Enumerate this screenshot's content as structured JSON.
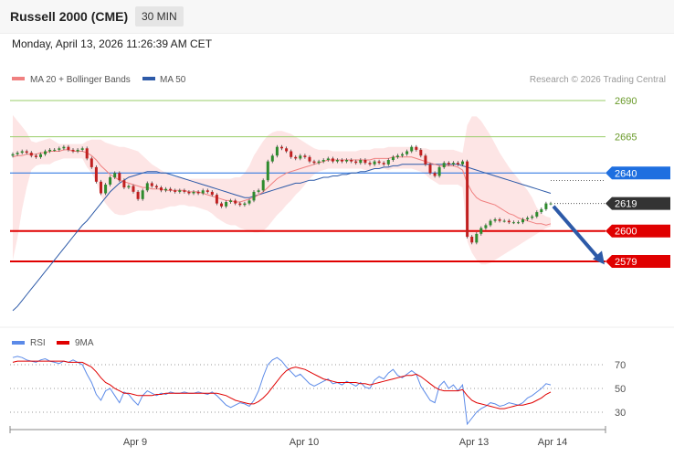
{
  "header": {
    "title": "Russell 2000 (CME)",
    "timeframe": "30 MIN"
  },
  "datetime": "Monday, April 13, 2026 11:26:39 AM CET",
  "colors": {
    "ma20": "#f08080",
    "ma50": "#2d5aa8",
    "band": "#fde0e0",
    "rsi": "#5b8ae8",
    "rsi_ma": "#e00000",
    "up": "#2e8b2e",
    "down": "#c02020",
    "resistance_green": "#9acd6a",
    "pivot_blue": "#1e6fe0",
    "support_red": "#e00000",
    "last": "#333333"
  },
  "chart_data": [
    {
      "type": "candlestick",
      "legend": [
        {
          "name": "MA 20 + Bollinger Bands",
          "color": "#f08080"
        },
        {
          "name": "MA 50",
          "color": "#2d5aa8"
        }
      ],
      "watermark": "Research © 2026 Trading Central",
      "ylim": [
        2520,
        2700
      ],
      "levels": [
        {
          "value": 2690,
          "label": "2690",
          "style": "resistance-green"
        },
        {
          "value": 2665,
          "label": "2665",
          "style": "resistance-green"
        },
        {
          "value": 2640,
          "label": "2640",
          "style": "pivot-blue"
        },
        {
          "value": 2619,
          "label": "2619",
          "style": "last-price"
        },
        {
          "value": 2600,
          "label": "2600",
          "style": "support-red"
        },
        {
          "value": 2579,
          "label": "2579",
          "style": "support-red"
        }
      ],
      "x_ticks": [
        "Apr 9",
        "Apr 10",
        "Apr 13",
        "Apr 14"
      ],
      "close": [
        2653,
        2654,
        2655,
        2654,
        2652,
        2651,
        2653,
        2655,
        2656,
        2656,
        2657,
        2658,
        2656,
        2655,
        2656,
        2657,
        2650,
        2644,
        2634,
        2626,
        2632,
        2637,
        2640,
        2635,
        2630,
        2631,
        2627,
        2622,
        2628,
        2633,
        2631,
        2630,
        2628,
        2629,
        2628,
        2627,
        2628,
        2627,
        2626,
        2627,
        2626,
        2628,
        2627,
        2625,
        2619,
        2617,
        2620,
        2621,
        2619,
        2618,
        2619,
        2621,
        2627,
        2628,
        2635,
        2648,
        2652,
        2658,
        2657,
        2655,
        2651,
        2650,
        2652,
        2651,
        2648,
        2647,
        2648,
        2649,
        2650,
        2648,
        2649,
        2648,
        2649,
        2648,
        2647,
        2649,
        2647,
        2646,
        2648,
        2647,
        2646,
        2649,
        2651,
        2652,
        2653,
        2655,
        2658,
        2656,
        2652,
        2646,
        2640,
        2638,
        2644,
        2647,
        2646,
        2647,
        2646,
        2648,
        2596,
        2592,
        2598,
        2602,
        2604,
        2607,
        2608,
        2607,
        2607,
        2606,
        2606,
        2606,
        2608,
        2609,
        2610,
        2613,
        2615,
        2619,
        2619
      ],
      "ma20": [
        2651,
        2652,
        2652,
        2653,
        2653,
        2653,
        2654,
        2654,
        2655,
        2655,
        2655,
        2656,
        2656,
        2655,
        2655,
        2655,
        2654,
        2652,
        2649,
        2645,
        2642,
        2639,
        2637,
        2635,
        2634,
        2633,
        2632,
        2631,
        2630,
        2630,
        2629,
        2629,
        2629,
        2628,
        2628,
        2628,
        2628,
        2628,
        2627,
        2627,
        2627,
        2626,
        2625,
        2624,
        2623,
        2622,
        2621,
        2621,
        2620,
        2620,
        2621,
        2622,
        2623,
        2625,
        2627,
        2630,
        2633,
        2636,
        2638,
        2640,
        2641,
        2642,
        2643,
        2644,
        2645,
        2646,
        2647,
        2648,
        2649,
        2649,
        2649,
        2649,
        2649,
        2649,
        2649,
        2649,
        2649,
        2649,
        2650,
        2650,
        2650,
        2650,
        2651,
        2651,
        2651,
        2651,
        2651,
        2650,
        2649,
        2648,
        2647,
        2646,
        2645,
        2645,
        2645,
        2645,
        2644,
        2642,
        2633,
        2627,
        2623,
        2621,
        2620,
        2619,
        2618,
        2616,
        2614,
        2612,
        2611,
        2609,
        2608,
        2607,
        2606,
        2605,
        2605,
        2604,
        2605
      ],
      "bb_upper": [
        2680,
        2676,
        2672,
        2668,
        2662,
        2661,
        2662,
        2663,
        2664,
        2662,
        2660,
        2660,
        2660,
        2660,
        2660,
        2660,
        2662,
        2663,
        2663,
        2663,
        2661,
        2660,
        2659,
        2658,
        2658,
        2657,
        2656,
        2655,
        2652,
        2649,
        2646,
        2644,
        2642,
        2640,
        2638,
        2637,
        2637,
        2636,
        2636,
        2636,
        2636,
        2636,
        2636,
        2636,
        2636,
        2636,
        2636,
        2636,
        2637,
        2637,
        2640,
        2645,
        2652,
        2657,
        2662,
        2666,
        2668,
        2669,
        2669,
        2668,
        2667,
        2665,
        2663,
        2661,
        2659,
        2657,
        2656,
        2656,
        2656,
        2655,
        2655,
        2655,
        2655,
        2655,
        2655,
        2656,
        2656,
        2656,
        2657,
        2657,
        2657,
        2658,
        2658,
        2658,
        2658,
        2658,
        2658,
        2658,
        2657,
        2657,
        2656,
        2656,
        2656,
        2656,
        2656,
        2656,
        2655,
        2654,
        2673,
        2679,
        2679,
        2676,
        2671,
        2666,
        2660,
        2654,
        2649,
        2644,
        2640,
        2636,
        2632,
        2628,
        2623,
        2616,
        2612,
        2610,
        2609
      ],
      "bb_lower": [
        2580,
        2595,
        2615,
        2630,
        2642,
        2645,
        2646,
        2646,
        2646,
        2648,
        2649,
        2650,
        2650,
        2650,
        2650,
        2650,
        2644,
        2640,
        2634,
        2624,
        2619,
        2615,
        2612,
        2611,
        2611,
        2612,
        2613,
        2614,
        2614,
        2614,
        2614,
        2615,
        2615,
        2616,
        2617,
        2617,
        2618,
        2618,
        2617,
        2617,
        2616,
        2615,
        2614,
        2612,
        2609,
        2607,
        2605,
        2604,
        2604,
        2602,
        2601,
        2600,
        2599,
        2599,
        2600,
        2603,
        2607,
        2611,
        2614,
        2618,
        2621,
        2625,
        2628,
        2632,
        2636,
        2639,
        2641,
        2642,
        2643,
        2643,
        2643,
        2643,
        2643,
        2643,
        2643,
        2643,
        2642,
        2642,
        2643,
        2643,
        2643,
        2642,
        2643,
        2643,
        2643,
        2643,
        2643,
        2642,
        2641,
        2639,
        2636,
        2634,
        2632,
        2632,
        2632,
        2632,
        2632,
        2630,
        2593,
        2585,
        2580,
        2577,
        2577,
        2578,
        2580,
        2582,
        2584,
        2586,
        2588,
        2590,
        2592,
        2594,
        2596,
        2598,
        2600,
        2602,
        2603
      ],
      "ma50": [
        2545,
        2548,
        2552,
        2556,
        2560,
        2564,
        2568,
        2572,
        2576,
        2580,
        2584,
        2588,
        2592,
        2596,
        2600,
        2604,
        2607,
        2611,
        2615,
        2619,
        2623,
        2627,
        2630,
        2633,
        2635,
        2637,
        2638,
        2639,
        2640,
        2641,
        2641,
        2641,
        2640,
        2640,
        2639,
        2638,
        2637,
        2636,
        2635,
        2634,
        2633,
        2632,
        2631,
        2630,
        2629,
        2628,
        2627,
        2626,
        2625,
        2624,
        2623,
        2623,
        2624,
        2625,
        2626,
        2627,
        2628,
        2629,
        2630,
        2631,
        2632,
        2633,
        2633,
        2634,
        2635,
        2635,
        2636,
        2637,
        2637,
        2638,
        2638,
        2639,
        2639,
        2640,
        2640,
        2641,
        2641,
        2642,
        2643,
        2643,
        2644,
        2644,
        2645,
        2645,
        2646,
        2646,
        2646,
        2646,
        2646,
        2646,
        2646,
        2646,
        2646,
        2646,
        2646,
        2646,
        2646,
        2645,
        2644,
        2643,
        2642,
        2641,
        2640,
        2639,
        2638,
        2637,
        2636,
        2635,
        2634,
        2633,
        2632,
        2631,
        2630,
        2629,
        2628,
        2627,
        2626
      ],
      "forecast_arrow": {
        "from": 2617,
        "to": 2580
      }
    },
    {
      "type": "line",
      "legend": [
        {
          "name": "RSI",
          "color": "#5b8ae8"
        },
        {
          "name": "9MA",
          "color": "#e00000"
        }
      ],
      "ylim": [
        20,
        85
      ],
      "y_ticks": [
        70,
        50,
        30
      ],
      "rsi": [
        76,
        77,
        76,
        74,
        73,
        72,
        74,
        75,
        73,
        72,
        71,
        73,
        72,
        74,
        72,
        70,
        62,
        55,
        45,
        40,
        48,
        50,
        44,
        38,
        47,
        45,
        40,
        36,
        44,
        48,
        46,
        44,
        46,
        45,
        47,
        46,
        46,
        47,
        46,
        46,
        47,
        46,
        45,
        47,
        44,
        40,
        36,
        34,
        36,
        38,
        37,
        35,
        40,
        48,
        60,
        70,
        74,
        76,
        73,
        68,
        64,
        60,
        62,
        58,
        54,
        52,
        54,
        56,
        58,
        54,
        55,
        53,
        56,
        54,
        52,
        55,
        51,
        50,
        57,
        60,
        58,
        63,
        66,
        61,
        59,
        62,
        65,
        62,
        52,
        46,
        40,
        38,
        52,
        56,
        50,
        53,
        48,
        53,
        20,
        25,
        30,
        33,
        35,
        38,
        37,
        35,
        36,
        38,
        37,
        36,
        38,
        42,
        44,
        47,
        50,
        54,
        53
      ],
      "rsi_ma": [
        72,
        73,
        73,
        73,
        73,
        73,
        73,
        73,
        73,
        73,
        73,
        73,
        72,
        72,
        72,
        72,
        70,
        68,
        64,
        59,
        55,
        53,
        50,
        48,
        46,
        46,
        45,
        44,
        44,
        44,
        44,
        45,
        45,
        46,
        46,
        46,
        46,
        46,
        46,
        46,
        46,
        46,
        46,
        46,
        46,
        45,
        44,
        42,
        40,
        39,
        38,
        37,
        37,
        39,
        42,
        46,
        51,
        56,
        61,
        65,
        67,
        68,
        67,
        66,
        64,
        62,
        60,
        58,
        57,
        56,
        55,
        55,
        55,
        55,
        55,
        54,
        54,
        53,
        54,
        55,
        56,
        57,
        58,
        59,
        60,
        61,
        61,
        62,
        60,
        57,
        54,
        51,
        49,
        48,
        48,
        48,
        48,
        49,
        44,
        40,
        38,
        37,
        36,
        35,
        34,
        33,
        33,
        34,
        35,
        36,
        36,
        37,
        38,
        40,
        42,
        45,
        47
      ],
      "x_ticks": [
        "Apr 9",
        "Apr 10",
        "Apr 13",
        "Apr 14"
      ]
    }
  ]
}
